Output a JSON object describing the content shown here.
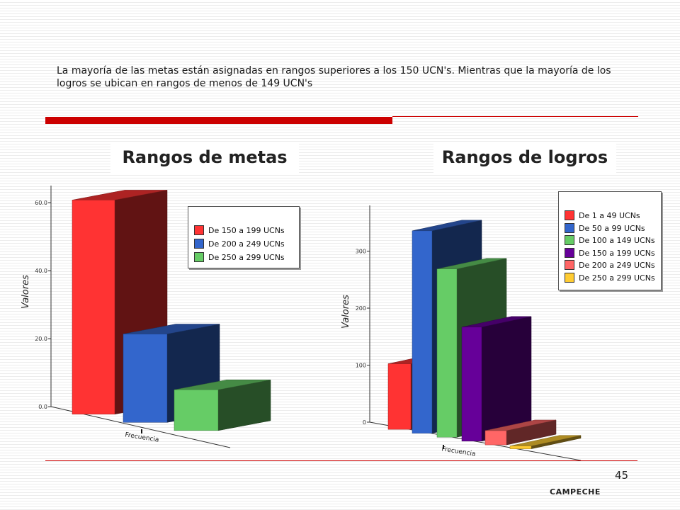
{
  "intro_text": "La mayoría de las metas están asignadas en rangos superiores a los 150 UCN's. Mientras que la mayoría de  los logros se ubican en rangos de menos de 149 UCN's",
  "page_number": "45",
  "footer": "CAMPECHE",
  "colors": {
    "accent": "#cc0000"
  },
  "chart_data": [
    {
      "type": "bar",
      "title": "Rangos de metas",
      "ylabel": "Valores",
      "xlabel": "Frecuencia",
      "ylim": [
        0,
        60
      ],
      "yticks": [
        "0.0",
        "20.0",
        "40.0",
        "60.0"
      ],
      "legend_position": "top-right",
      "series": [
        {
          "name": "De 150 a 199 UCNs",
          "value": 63,
          "color": "#ff3333"
        },
        {
          "name": "De 200 a 249 UCNs",
          "value": 26,
          "color": "#3366cc"
        },
        {
          "name": "De 250 a 299 UCNs",
          "value": 12,
          "color": "#66cc66"
        }
      ]
    },
    {
      "type": "bar",
      "title": "Rangos de logros",
      "ylabel": "Valores",
      "xlabel": "Frecuencia",
      "ylim": [
        0,
        300
      ],
      "yticks": [
        "0",
        "100",
        "200",
        "300"
      ],
      "legend_position": "top-right",
      "series": [
        {
          "name": "De 1 a 49 UCNs",
          "value": 115,
          "color": "#ff3333"
        },
        {
          "name": "De 50 a 99 UCNs",
          "value": 355,
          "color": "#3366cc"
        },
        {
          "name": "De 100 a 149 UCNs",
          "value": 295,
          "color": "#66cc66"
        },
        {
          "name": "De 150 a 199 UCNs",
          "value": 200,
          "color": "#660099"
        },
        {
          "name": "De 200 a 249 UCNs",
          "value": 25,
          "color": "#ff6666"
        },
        {
          "name": "De 250 a 299 UCNs",
          "value": 5,
          "color": "#ffcc33"
        }
      ]
    }
  ]
}
